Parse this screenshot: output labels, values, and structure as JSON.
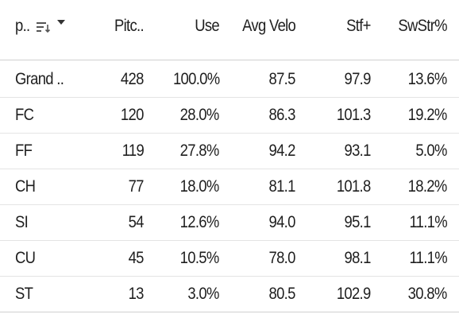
{
  "table": {
    "header": [
      "p..",
      "Pitc..",
      "Use",
      "Avg Velo",
      "Stf+",
      "SwStr%"
    ],
    "rows": [
      [
        "Grand ..",
        "428",
        "100.0%",
        "87.5",
        "97.9",
        "13.6%"
      ],
      [
        "FC",
        "120",
        "28.0%",
        "86.3",
        "101.3",
        "19.2%"
      ],
      [
        "FF",
        "119",
        "27.8%",
        "94.2",
        "93.1",
        "5.0%"
      ],
      [
        "CH",
        "77",
        "18.0%",
        "81.1",
        "101.8",
        "18.2%"
      ],
      [
        "SI",
        "54",
        "12.6%",
        "94.0",
        "95.1",
        "11.1%"
      ],
      [
        "CU",
        "45",
        "10.5%",
        "78.0",
        "98.1",
        "11.1%"
      ],
      [
        "ST",
        "13",
        "3.0%",
        "80.5",
        "102.9",
        "30.8%"
      ]
    ]
  }
}
